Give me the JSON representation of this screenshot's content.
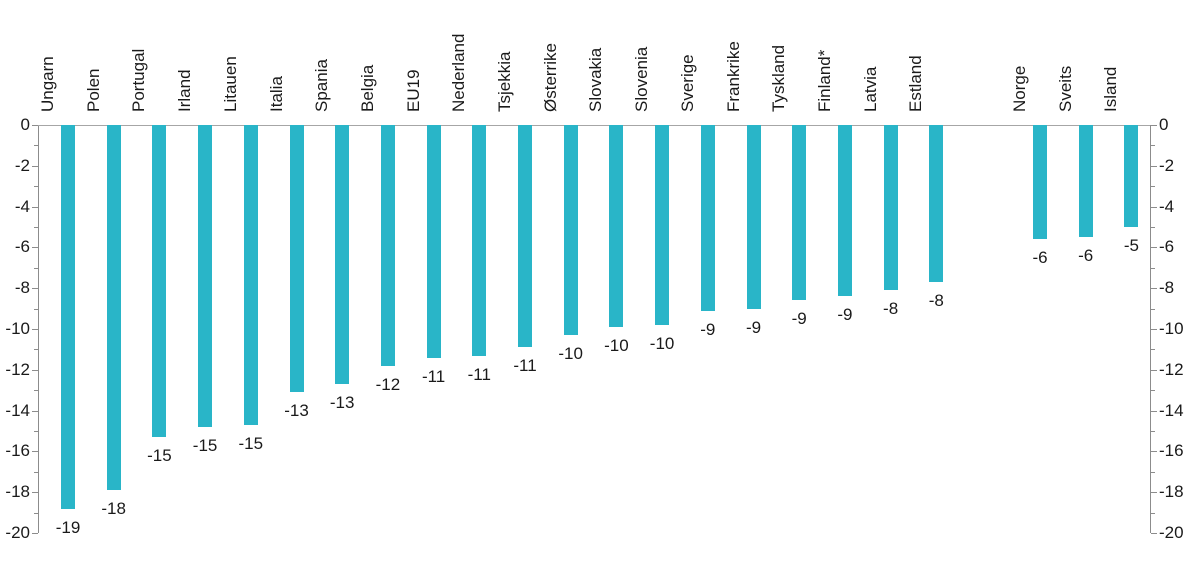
{
  "chart_data": {
    "type": "bar",
    "title": "",
    "xlabel": "",
    "ylabel": "",
    "categories": [
      "Ungarn",
      "Polen",
      "Portugal",
      "Irland",
      "Litauen",
      "Italia",
      "Spania",
      "Belgia",
      "EU19",
      "Nederland",
      "Tsjekkia",
      "Østerrike",
      "Slovakia",
      "Slovenia",
      "Sverige",
      "Frankrike",
      "Tyskland",
      "Finland*",
      "Latvia",
      "Estland",
      "Norge",
      "Sveits",
      "Island"
    ],
    "values": [
      -19,
      -18,
      -15,
      -15,
      -15,
      -13,
      -13,
      -12,
      -11,
      -11,
      -11,
      -10,
      -10,
      -10,
      -9,
      -9,
      -9,
      -9,
      -8,
      -8,
      -6,
      -6,
      -5
    ],
    "plot_values": [
      -18.8,
      -17.9,
      -15.3,
      -14.8,
      -14.7,
      -13.1,
      -12.7,
      -11.8,
      -11.4,
      -11.3,
      -10.9,
      -10.3,
      -9.9,
      -9.8,
      -9.1,
      -9.0,
      -8.6,
      -8.4,
      -8.1,
      -7.7,
      -5.6,
      -5.5,
      -5.0
    ],
    "value_labels_shown": true,
    "separate_group_start_index": 20,
    "ylim": [
      -20,
      0
    ],
    "yticks": [
      0,
      -2,
      -4,
      -6,
      -8,
      -10,
      -12,
      -14,
      -16,
      -18,
      -20
    ],
    "ytick_step": 2,
    "grid": false,
    "legend": null,
    "bar_color": "#29b5c8",
    "axis_color": "#8c8c8c",
    "zero_line_color": "#a6a6a6",
    "text_color": "#1a1a1a",
    "background": "#ffffff"
  }
}
